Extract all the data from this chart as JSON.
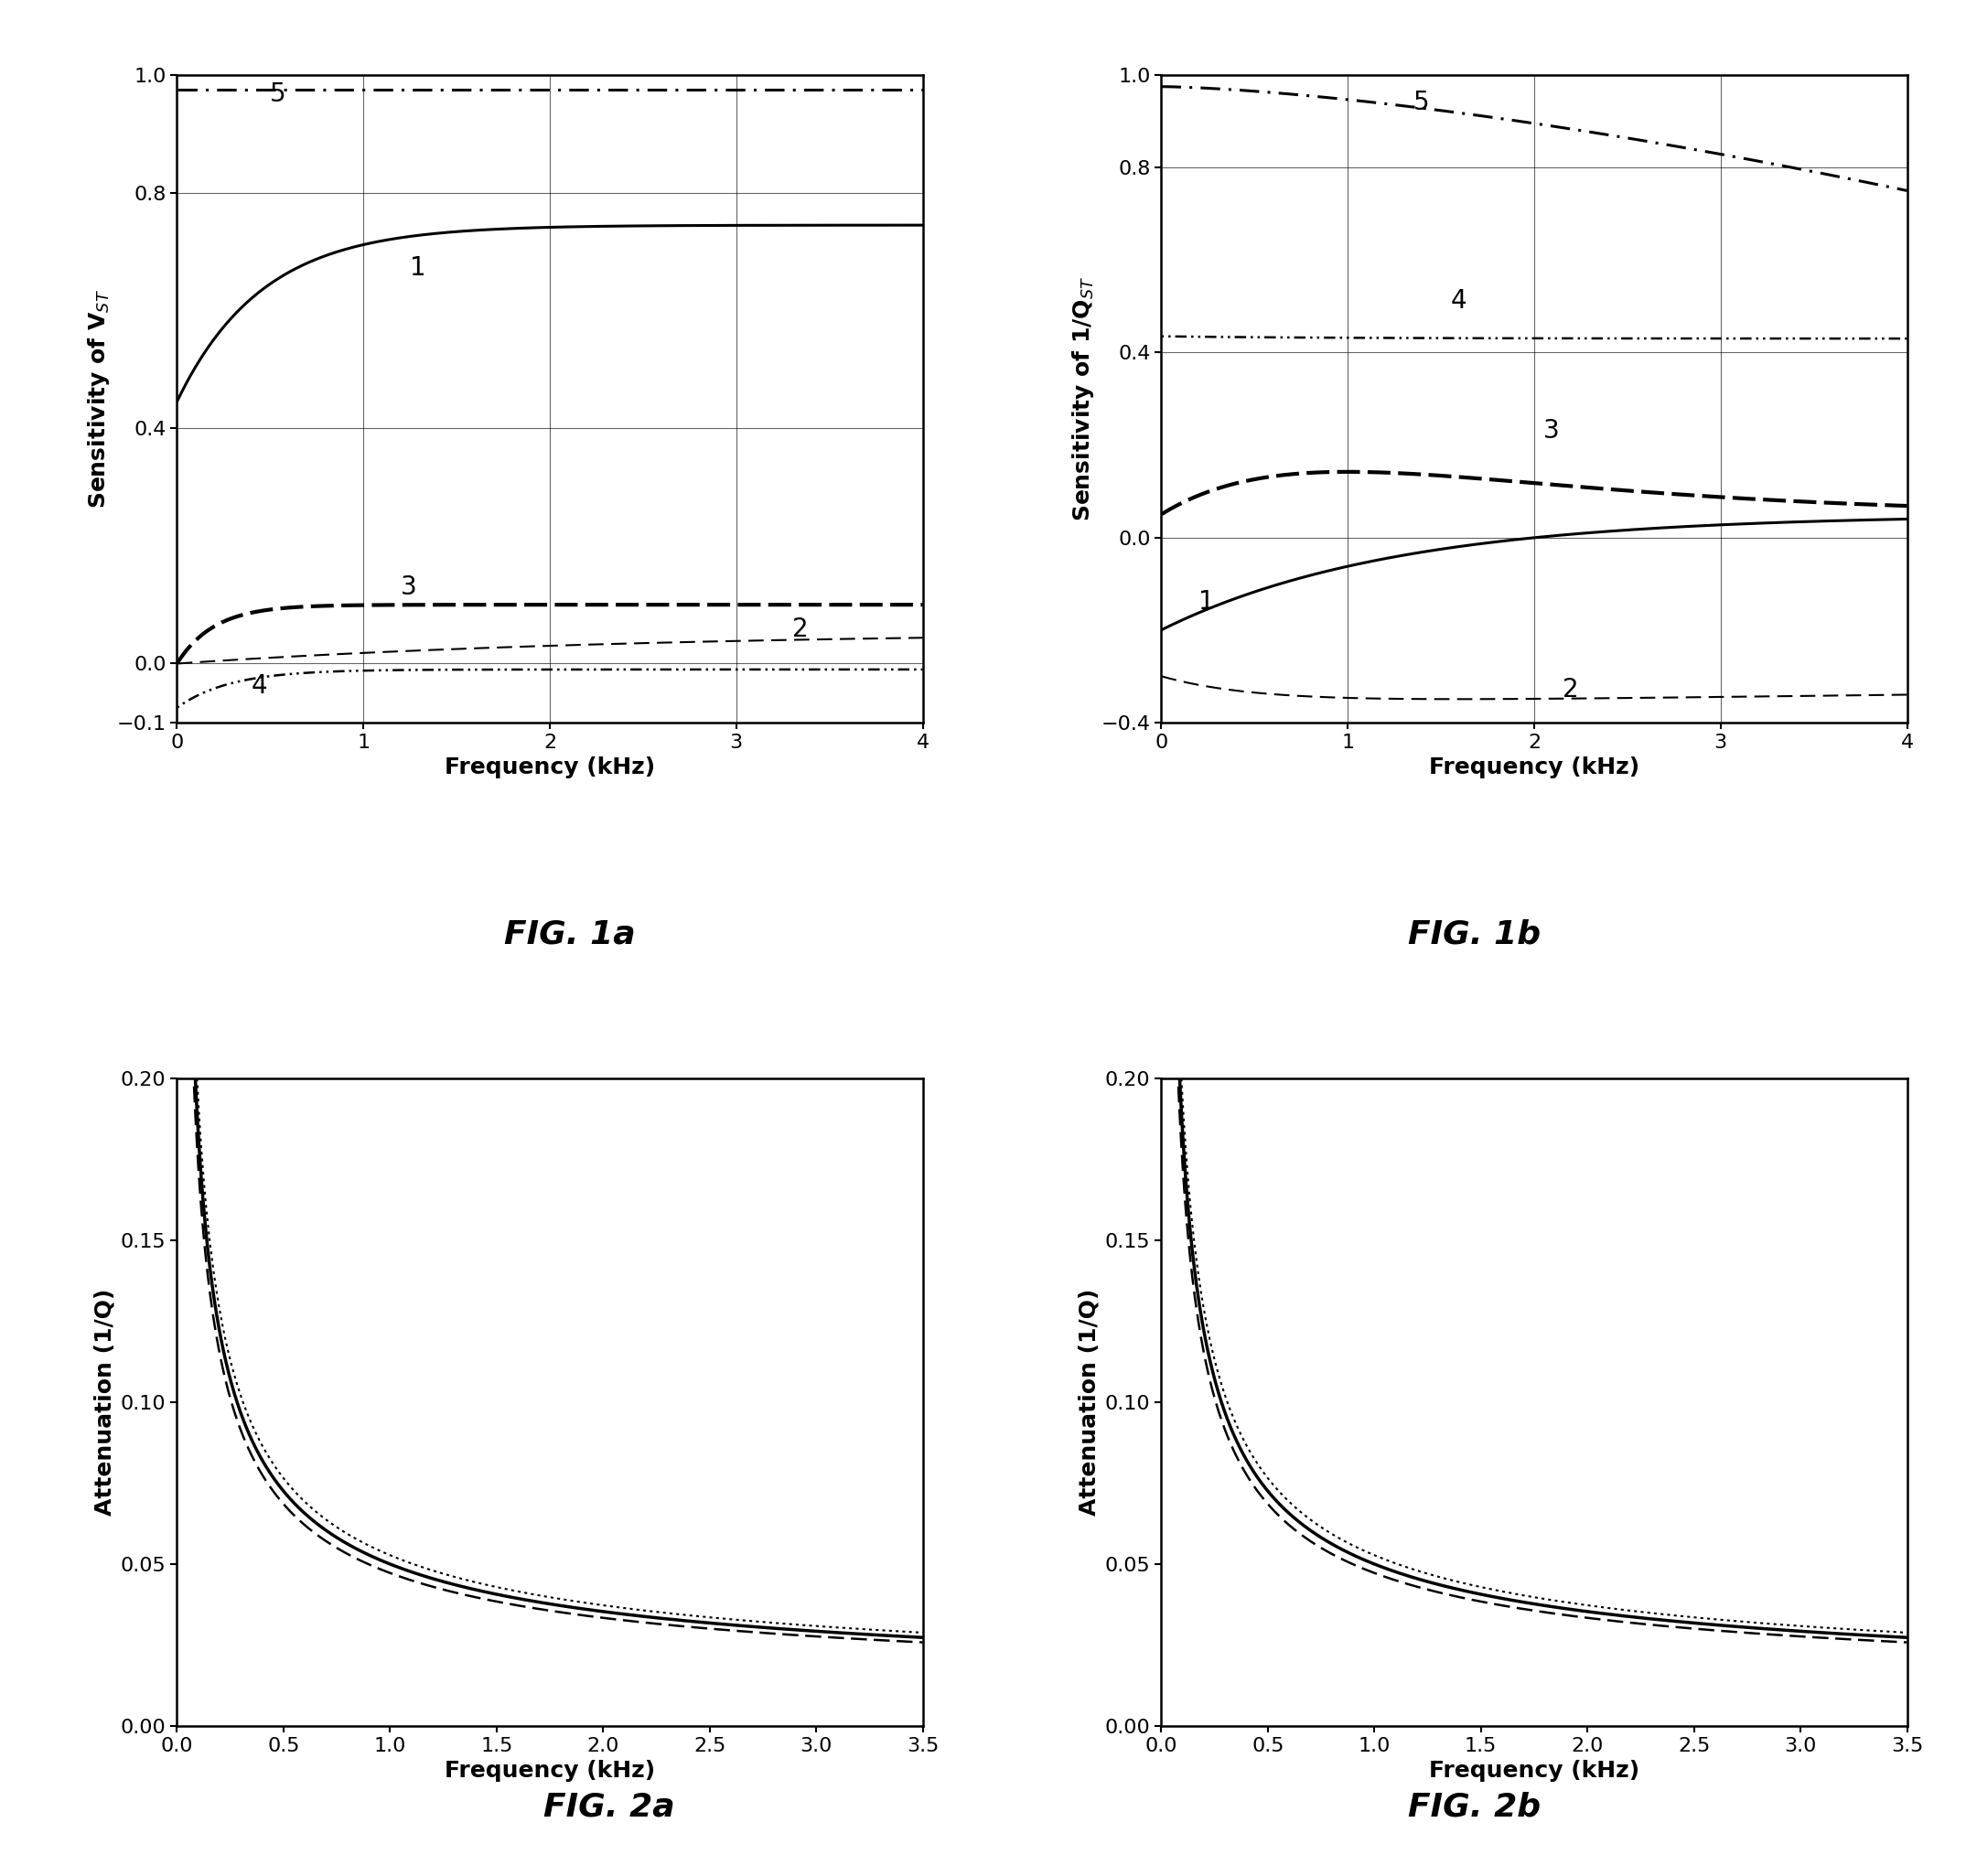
{
  "fig1a": {
    "title": "FIG. 1a",
    "xlabel": "Frequency (kHz)",
    "ylabel": "Sensitivity of V$_{ST}$",
    "xlim": [
      0,
      4
    ],
    "ylim": [
      -0.1,
      1.0
    ],
    "yticks": [
      -0.1,
      0.0,
      0.4,
      0.8,
      1.0
    ],
    "xticks": [
      0,
      1,
      2,
      3,
      4
    ]
  },
  "fig1b": {
    "title": "FIG. 1b",
    "xlabel": "Frequency (kHz)",
    "ylabel": "Sensitivity of 1/Q$_{ST}$",
    "xlim": [
      0,
      4
    ],
    "ylim": [
      -0.4,
      1.0
    ],
    "yticks": [
      -0.4,
      0.0,
      0.4,
      0.8,
      1.0
    ],
    "xticks": [
      0,
      1,
      2,
      3,
      4
    ]
  },
  "fig2a": {
    "title": "FIG. 2a",
    "xlabel": "Frequency (kHz)",
    "ylabel": "Attenuation (1/Q)",
    "xlim": [
      0,
      3.5
    ],
    "ylim": [
      0,
      0.2
    ],
    "yticks": [
      0,
      0.05,
      0.1,
      0.15,
      0.2
    ],
    "xticks": [
      0,
      0.5,
      1.0,
      1.5,
      2.0,
      2.5,
      3.0,
      3.5
    ]
  },
  "fig2b": {
    "title": "FIG. 2b",
    "xlabel": "Frequency (kHz)",
    "ylabel": "Attenuation (1/Q)",
    "xlim": [
      0,
      3.5
    ],
    "ylim": [
      0,
      0.2
    ],
    "yticks": [
      0,
      0.05,
      0.1,
      0.15,
      0.2
    ],
    "xticks": [
      0,
      0.5,
      1.0,
      1.5,
      2.0,
      2.5,
      3.0,
      3.5
    ]
  },
  "background_color": "#ffffff",
  "line_color": "#000000",
  "title_fontsize": 26,
  "label_fontsize": 18,
  "tick_fontsize": 16,
  "annotation_fontsize": 20
}
